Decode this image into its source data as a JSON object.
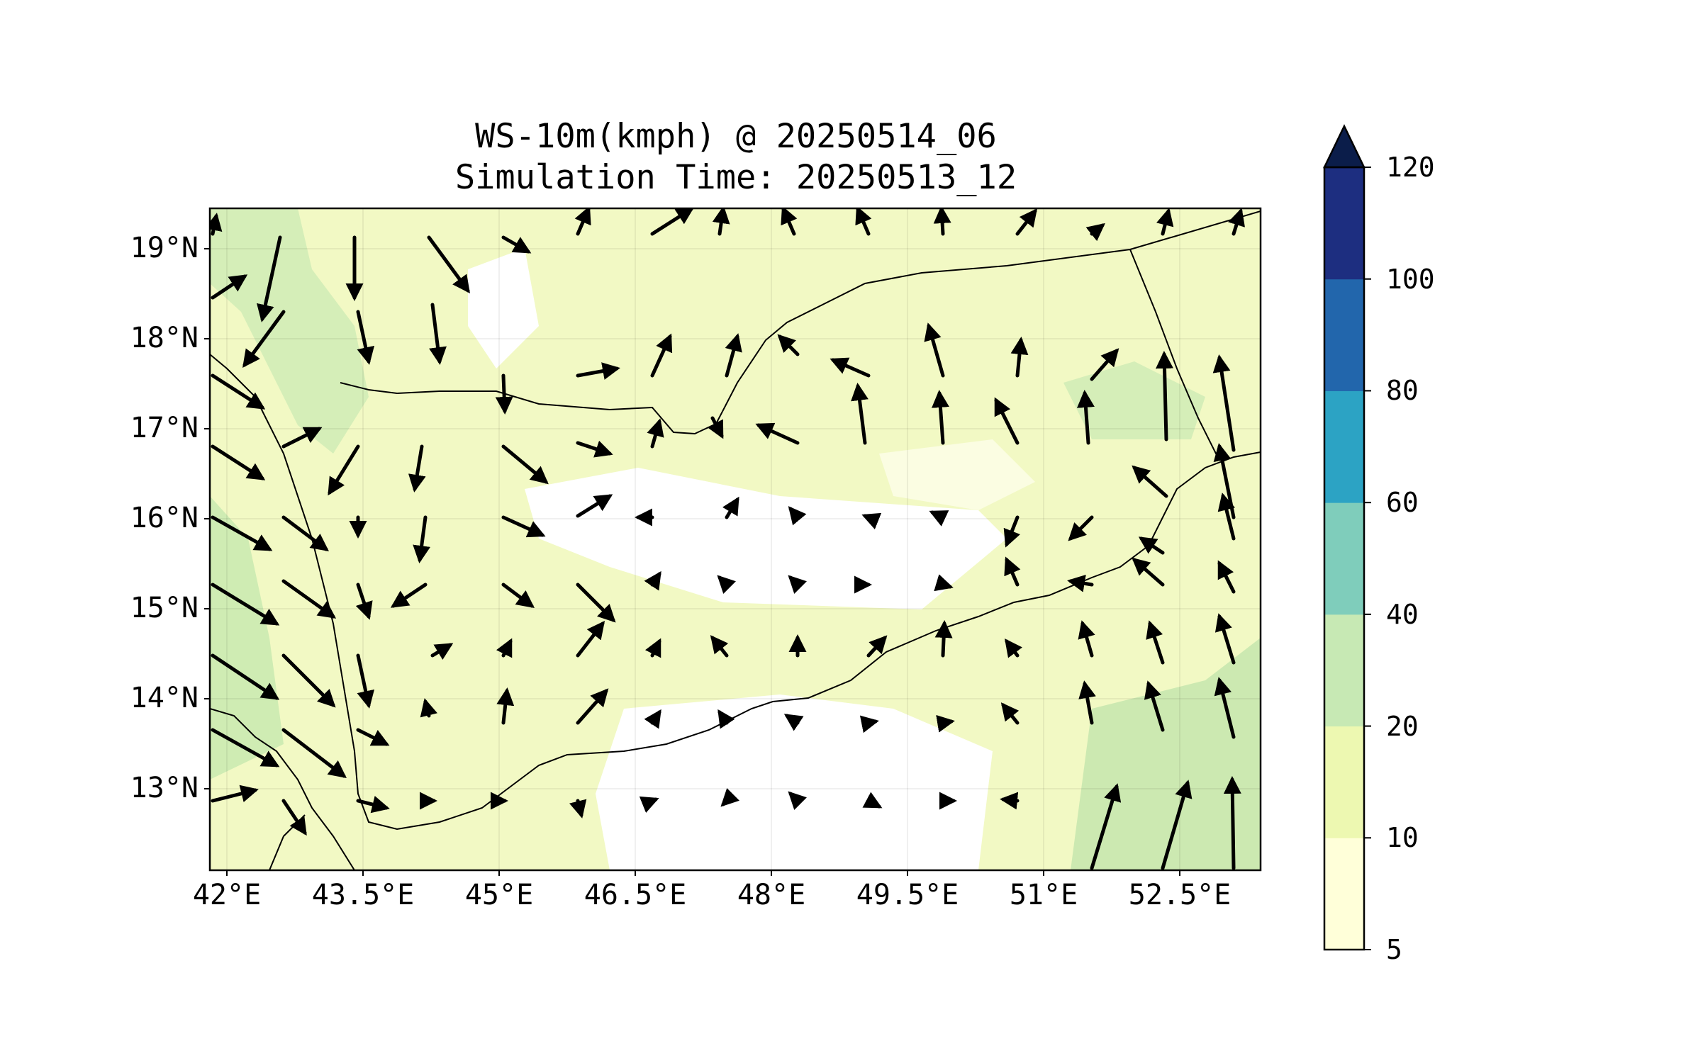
{
  "figure": {
    "title_line1": "WS-10m(kmph) @ 20250514_06",
    "title_line2": "Simulation Time: 20250513_12"
  },
  "map": {
    "lon_range": [
      41.9,
      53.5
    ],
    "lat_range": [
      12.1,
      19.45
    ],
    "x_tick_labels": [
      "42°E",
      "43.5°E",
      "45°E",
      "46.5°E",
      "48°E",
      "49.5°E",
      "51°E",
      "52.5°E"
    ],
    "y_tick_labels": [
      "19°N",
      "18°N",
      "17°N",
      "16°N",
      "15°N",
      "14°N",
      "13°N"
    ],
    "gridlines": true,
    "background_color": "#ffffff",
    "land_border_color": "#000000"
  },
  "colorbar": {
    "levels": [
      "5",
      "10",
      "20",
      "40",
      "60",
      "80",
      "100",
      "120"
    ],
    "colors": [
      "#ffffd9",
      "#edf8b1",
      "#c7e9b4",
      "#7fcdbb",
      "#2ca3c4",
      "#2266ac",
      "#1d2e80"
    ],
    "extend_color": "#0b1d4a",
    "extend": "max",
    "unit": "kmph"
  },
  "icons": {
    "wind_vector": "arrow-icon"
  }
}
